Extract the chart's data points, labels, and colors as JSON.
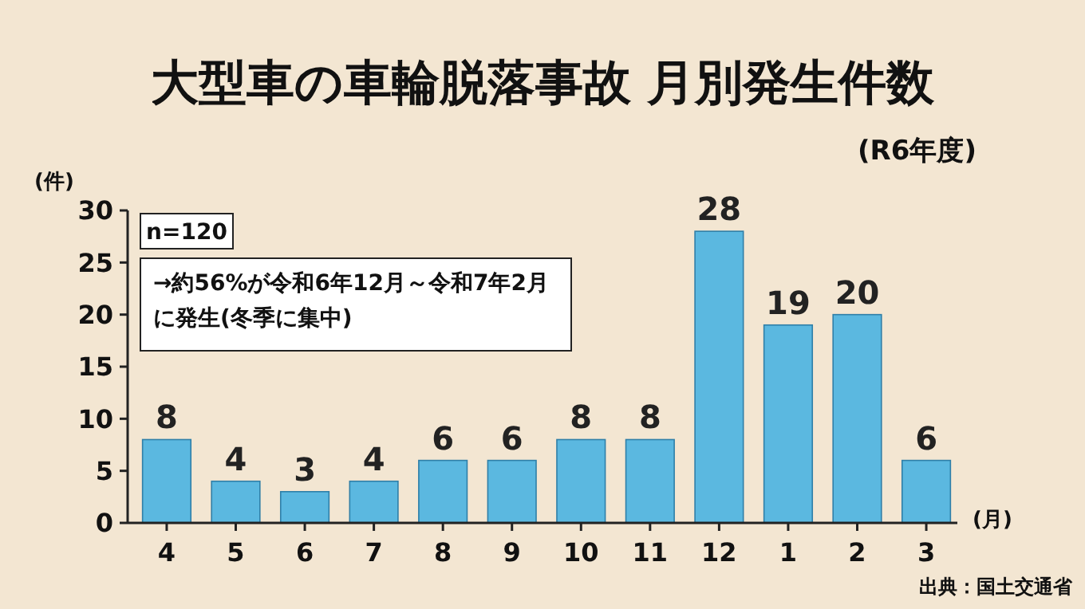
{
  "chart_data": {
    "type": "bar",
    "title": "大型車の車輪脱落事故  月別発生件数",
    "subtitle": "(R6年度)",
    "ylabel": "(件)",
    "xlabel": "(月)",
    "categories": [
      "4",
      "5",
      "6",
      "7",
      "8",
      "9",
      "10",
      "11",
      "12",
      "1",
      "2",
      "3"
    ],
    "values": [
      8,
      4,
      3,
      4,
      6,
      6,
      8,
      8,
      28,
      19,
      20,
      6
    ],
    "color": "#5bb8e0",
    "ylim": [
      0,
      30
    ],
    "yticks": [
      0,
      5,
      10,
      15,
      20,
      25,
      30
    ],
    "grid": false,
    "data_labels": true,
    "annotations": [
      "n=120",
      "→約56%が令和6年12月～令和7年2月に発生(冬季に集中)",
      "出典：国土交通省"
    ]
  }
}
